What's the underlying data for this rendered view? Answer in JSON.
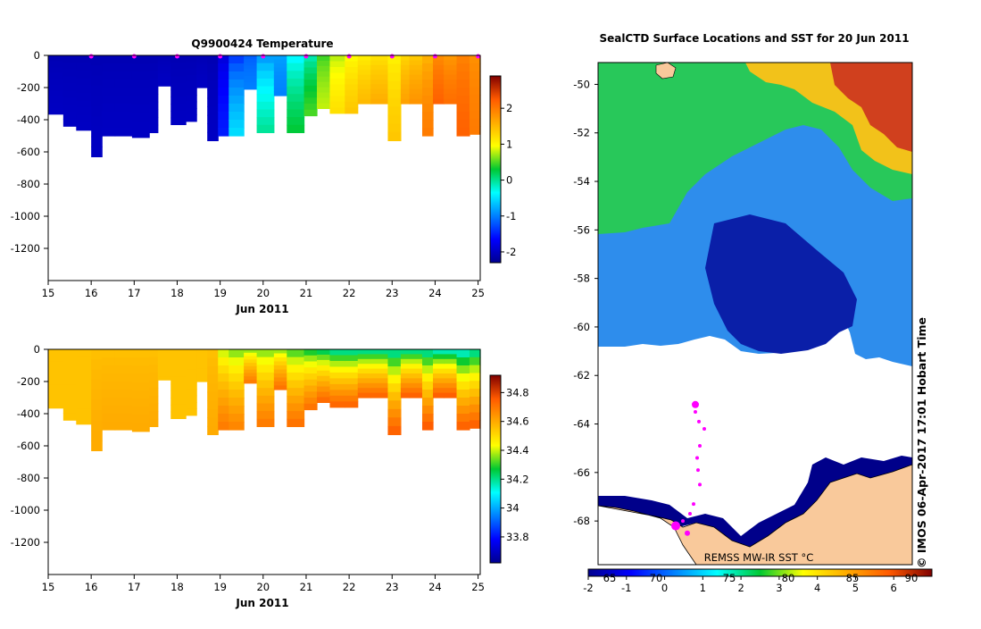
{
  "chart_data": [
    {
      "type": "heatmap",
      "title": "Q9900424  Temperature",
      "xlabel": "Jun 2011",
      "ylabel": "",
      "x_ticks": [
        15,
        16,
        17,
        18,
        19,
        20,
        21,
        22,
        23,
        24,
        25
      ],
      "y_ticks": [
        0,
        -200,
        -400,
        -600,
        -800,
        -1000,
        -1200
      ],
      "xlim": [
        15,
        25.05
      ],
      "ylim": [
        -1400,
        0
      ],
      "colorbar": {
        "ticks": [
          2,
          1,
          0,
          -1,
          -2
        ],
        "range": [
          -2.3,
          2.9
        ]
      },
      "profile_times": [
        15,
        15.35,
        15.65,
        16.0,
        16.25,
        16.55,
        16.95,
        17.35,
        17.55,
        17.85,
        18.2,
        18.45,
        18.7,
        18.95,
        19.2,
        19.55,
        19.85,
        20.25,
        20.55,
        20.95,
        21.25,
        21.55,
        21.9,
        22.2,
        22.5,
        22.9,
        23.2,
        23.4,
        23.7,
        23.95,
        24.2,
        24.5,
        24.8,
        25.05
      ],
      "profile_depths": [
        365,
        440,
        465,
        630,
        500,
        500,
        510,
        480,
        190,
        430,
        410,
        200,
        530,
        500,
        500,
        210,
        480,
        250,
        480,
        375,
        330,
        360,
        360,
        300,
        300,
        530,
        300,
        300,
        500,
        300,
        300,
        500,
        490
      ],
      "surface_temperature": [
        -2.1,
        -2.1,
        -2.1,
        -2.1,
        -2.1,
        -2.1,
        -2.1,
        -2.1,
        -2.1,
        -2.1,
        -2.1,
        -2.1,
        -2.1,
        -1.9,
        -1.5,
        -1.2,
        -1.0,
        -0.8,
        -0.5,
        -0.2,
        0.4,
        0.7,
        0.9,
        1.0,
        1.1,
        1.0,
        1.2,
        1.3,
        1.5,
        1.8,
        1.7,
        1.9,
        1.8
      ],
      "deep_temperature": [
        -2.0,
        -2.0,
        -2.0,
        -2.0,
        -2.0,
        -2.0,
        -2.0,
        -2.0,
        -2.0,
        -2.0,
        -2.0,
        -2.0,
        -2.0,
        -1.5,
        -0.5,
        -1.0,
        0.0,
        -1.0,
        0.3,
        0.5,
        0.8,
        1.2,
        1.4,
        1.5,
        1.6,
        1.4,
        1.7,
        1.8,
        2.0,
        2.2,
        2.1,
        2.2,
        2.0
      ],
      "markers": [
        16,
        17,
        18,
        19,
        20,
        21,
        22,
        23,
        24,
        25
      ]
    },
    {
      "type": "heatmap",
      "title": "",
      "xlabel": "Jun 2011",
      "ylabel": "",
      "x_ticks": [
        15,
        16,
        17,
        18,
        19,
        20,
        21,
        22,
        23,
        24,
        25
      ],
      "y_ticks": [
        0,
        -200,
        -400,
        -600,
        -800,
        -1000,
        -1200
      ],
      "xlim": [
        15,
        25.05
      ],
      "ylim": [
        -1400,
        0
      ],
      "colorbar": {
        "ticks": [
          34.8,
          34.6,
          34.4,
          34.2,
          34,
          33.8
        ],
        "range": [
          33.62,
          34.92
        ]
      },
      "surface_salinity": [
        34.55,
        34.55,
        34.55,
        34.55,
        34.55,
        34.55,
        34.55,
        34.55,
        34.55,
        34.55,
        34.55,
        34.55,
        34.55,
        34.35,
        34.3,
        34.3,
        34.3,
        34.3,
        34.25,
        34.2,
        34.15,
        34.1,
        34.1,
        34.1,
        34.1,
        34.1,
        34.1,
        34.1,
        34.1,
        34.05,
        34.05,
        34.05,
        34.1
      ],
      "deep_salinity": [
        34.55,
        34.55,
        34.55,
        34.6,
        34.6,
        34.6,
        34.6,
        34.6,
        34.55,
        34.55,
        34.55,
        34.55,
        34.6,
        34.7,
        34.68,
        34.7,
        34.7,
        34.72,
        34.72,
        34.72,
        34.74,
        34.75,
        34.75,
        34.75,
        34.75,
        34.76,
        34.76,
        34.76,
        34.77,
        34.77,
        34.77,
        34.76,
        34.76
      ]
    },
    {
      "type": "heatmap",
      "title": "SealCTD Surface Locations and SST for 20 Jun 2011",
      "xlabel": "",
      "ylabel": "",
      "y_ticks": [
        -50,
        -52,
        -54,
        -56,
        -58,
        -60,
        -62,
        -64,
        -66,
        -68
      ],
      "ylim": [
        -69.8,
        -49.1
      ],
      "colorbar_label": "REMSS MW-IR SST °C",
      "colorbar_ticks": [
        -2,
        -1,
        0,
        1,
        2,
        3,
        4,
        5,
        6
      ],
      "colorbar_range": [
        -2,
        7
      ],
      "longitude_ticks": [
        "65",
        "70",
        "75",
        "80",
        "85",
        "90"
      ],
      "seal_track_lat": [
        -63.2,
        -63.5,
        -63.9,
        -64.2,
        -64.9,
        -65.4,
        -65.9,
        -66.5,
        -67.3,
        -67.7,
        -68.0
      ],
      "credit": "© IMOS 06-Apr-2017 17:01 Hobart Time"
    }
  ],
  "colors": {
    "ocean_deep": "#00008a",
    "land": "#f9c99b",
    "marker": "#ff00ff",
    "background": "#ffffff"
  }
}
